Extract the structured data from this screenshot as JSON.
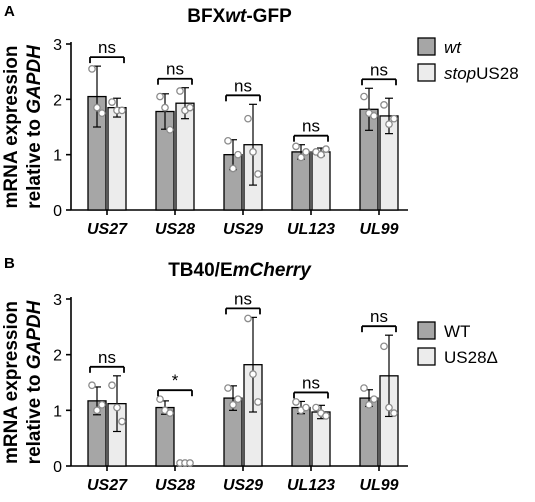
{
  "colors": {
    "group1": "#a6a6a6",
    "group2": "#ececec",
    "axis": "#000000",
    "point": "#8c8c8c"
  },
  "chart_data": [
    {
      "type": "bar",
      "panel_label": "A",
      "title_parts": [
        {
          "text": "BFX",
          "italic": false
        },
        {
          "text": "wt",
          "italic": true
        },
        {
          "text": "-GFP",
          "italic": false
        }
      ],
      "ylabel_line1": "mRNA expression",
      "ylabel_line2_parts": [
        {
          "text": "relative to ",
          "italic": false
        },
        {
          "text": "GAPDH",
          "italic": true
        }
      ],
      "ylim": [
        0,
        3
      ],
      "yticks": [
        "0",
        "1",
        "2",
        "3"
      ],
      "categories": [
        "US27",
        "US28",
        "US29",
        "UL123",
        "UL99"
      ],
      "series": [
        {
          "name_parts": [
            {
              "text": "wt",
              "italic": true
            }
          ],
          "values": [
            2.05,
            1.78,
            1.0,
            1.05,
            1.82
          ],
          "errors": [
            0.55,
            0.32,
            0.27,
            0.13,
            0.38
          ],
          "points": [
            [
              2.55,
              1.85,
              1.75
            ],
            [
              2.05,
              1.85,
              1.45
            ],
            [
              1.25,
              0.75,
              1.0
            ],
            [
              1.15,
              0.95,
              1.05
            ],
            [
              2.05,
              1.75,
              1.7
            ]
          ]
        },
        {
          "name_parts": [
            {
              "text": "stop",
              "italic": true
            },
            {
              "text": "US28",
              "italic": false
            }
          ],
          "values": [
            1.85,
            1.93,
            1.18,
            1.05,
            1.7
          ],
          "errors": [
            0.17,
            0.28,
            0.73,
            0.07,
            0.32
          ],
          "points": [
            [
              1.95,
              1.8,
              1.8
            ],
            [
              2.15,
              1.8,
              1.85
            ],
            [
              1.65,
              1.05,
              0.65
            ],
            [
              1.05,
              1.0,
              1.1
            ],
            [
              1.9,
              1.55,
              1.65
            ]
          ]
        }
      ],
      "comparisons": [
        "ns",
        "ns",
        "ns",
        "ns",
        "ns"
      ],
      "grid": false,
      "legend_position": "right"
    },
    {
      "type": "bar",
      "panel_label": "B",
      "title_parts": [
        {
          "text": "TB40/E",
          "italic": false
        },
        {
          "text": "mCherry",
          "italic": true
        }
      ],
      "ylabel_line1": "mRNA expression",
      "ylabel_line2_parts": [
        {
          "text": "relative to ",
          "italic": false
        },
        {
          "text": "GAPDH",
          "italic": true
        }
      ],
      "ylim": [
        0,
        3
      ],
      "yticks": [
        "0",
        "1",
        "2",
        "3"
      ],
      "categories": [
        "US27",
        "US28",
        "US29",
        "UL123",
        "UL99"
      ],
      "series": [
        {
          "name_parts": [
            {
              "text": "WT",
              "italic": false
            }
          ],
          "values": [
            1.17,
            1.05,
            1.22,
            1.05,
            1.22
          ],
          "errors": [
            0.25,
            0.12,
            0.22,
            0.11,
            0.15
          ],
          "points": [
            [
              1.45,
              1.0,
              1.1
            ],
            [
              1.2,
              1.0,
              0.95
            ],
            [
              1.4,
              1.1,
              1.2
            ],
            [
              1.15,
              1.0,
              1.05
            ],
            [
              1.4,
              1.1,
              1.2
            ]
          ]
        },
        {
          "name_parts": [
            {
              "text": "US28Δ",
              "italic": false
            }
          ],
          "values": [
            1.12,
            0.0,
            1.82,
            0.97,
            1.62
          ],
          "errors": [
            0.5,
            0.0,
            0.85,
            0.12,
            0.73
          ],
          "points": [
            [
              1.45,
              1.05,
              0.8
            ],
            [
              0.0,
              0.0,
              0.0
            ],
            [
              2.65,
              1.65,
              1.15
            ],
            [
              1.05,
              0.95,
              0.9
            ],
            [
              2.15,
              1.05,
              0.95
            ]
          ]
        }
      ],
      "comparisons": [
        "ns",
        "*",
        "ns",
        "ns",
        "ns"
      ],
      "grid": false,
      "legend_position": "right"
    }
  ]
}
